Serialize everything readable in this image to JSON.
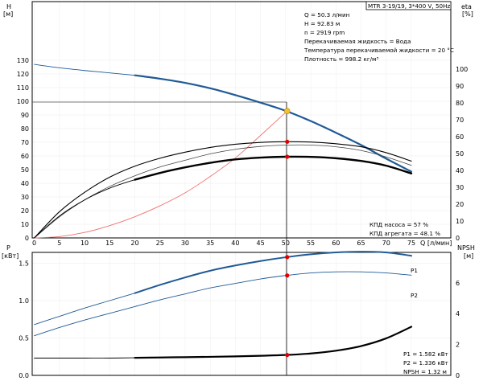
{
  "title": "MTR 3-19/19, 3*400 V, 50Hz",
  "operating_point": {
    "lines": [
      "Q = 50.3 л/мин",
      "H = 92.83 м",
      "n = 2919 rpm",
      "Перекачиваемая жидкость = Вода",
      "Температура перекачиваемой жидкости = 20 °C",
      "Плотность = 998.2 кг/м³"
    ]
  },
  "top_labels": {
    "left_axis_name": "H",
    "left_axis_unit": "[м]",
    "right_axis_name": "eta",
    "right_axis_unit": "[%]",
    "eff_pump": "КПД насоса = 57 %",
    "eff_unit": "КПД агрегата = 48.1 %"
  },
  "bottom_labels": {
    "left_axis_name": "P",
    "left_axis_unit": "[кВт]",
    "right_axis_name": "NPSH",
    "right_axis_unit": "[м]",
    "x_axis_label": "Q [л/мин]",
    "p1_series": "P1",
    "p2_series": "P2",
    "p1_value": "P1 = 1.582 кВт",
    "p2_value": "P2 = 1.336 кВт",
    "npsh_value": "NPSH = 1.32 м"
  },
  "colors": {
    "head": "#1f5a96",
    "eta": "#000000",
    "eta_thin": "#444444",
    "system": "#f07070",
    "power": "#1f5a96",
    "npsh": "#000000",
    "marker": "#e00000",
    "op_marker": "#f5c030"
  },
  "chart_data": [
    {
      "type": "line",
      "name": "pump-curves",
      "x_range": [
        0,
        80
      ],
      "ylim_left": [
        0,
        140
      ],
      "ylim_right": [
        0,
        100
      ],
      "x_ticks": [
        0,
        5,
        10,
        15,
        20,
        25,
        30,
        35,
        40,
        45,
        50,
        55,
        60,
        65,
        70,
        75
      ],
      "y_ticks_left": [
        0,
        10,
        20,
        30,
        40,
        50,
        60,
        70,
        80,
        90,
        100,
        110,
        120,
        130
      ],
      "y_ticks_right": [
        0,
        10,
        20,
        30,
        40,
        50,
        60,
        70,
        80,
        90,
        100
      ],
      "operating_point": {
        "q": 50.3,
        "h": 92.83,
        "eta_pump": 57,
        "eta_unit": 48.1
      },
      "series": [
        {
          "axis": "left",
          "style": "head-thin",
          "x": [
            0,
            5,
            10,
            15,
            20
          ],
          "y": [
            127,
            124.5,
            122.5,
            120.8,
            119
          ]
        },
        {
          "axis": "left",
          "style": "head",
          "x": [
            20,
            25,
            30,
            35,
            40,
            45,
            50,
            55,
            60,
            65,
            70,
            75
          ],
          "y": [
            119,
            116.5,
            113.5,
            109.5,
            104.5,
            99,
            93,
            85.5,
            77,
            68,
            58,
            48.5
          ]
        },
        {
          "axis": "left",
          "style": "system",
          "x": [
            0,
            5,
            10,
            15,
            20,
            25,
            30,
            35,
            40,
            45,
            50.3
          ],
          "y": [
            0,
            1,
            4,
            9,
            15.5,
            23.5,
            33,
            45,
            58.5,
            75,
            92.83
          ]
        },
        {
          "axis": "right",
          "style": "eta-thin",
          "x": [
            0,
            5,
            10,
            15,
            20,
            25,
            30,
            35,
            40,
            45,
            50,
            55,
            60,
            65,
            70,
            75
          ],
          "y": [
            0,
            12.5,
            22.5,
            30.5,
            36.8,
            42,
            46,
            49.8,
            52.5,
            54.2,
            55,
            55,
            54,
            51.8,
            48,
            43
          ]
        },
        {
          "axis": "right",
          "style": "eta-pump",
          "x": [
            0,
            5,
            10,
            15,
            20,
            25,
            30,
            35,
            40,
            45,
            50,
            55,
            60,
            65,
            70,
            75
          ],
          "y": [
            0,
            15.5,
            27,
            36,
            42.5,
            47.2,
            50.8,
            53.6,
            55.5,
            56.6,
            57,
            56.8,
            55.8,
            54,
            50.5,
            45.5
          ]
        },
        {
          "axis": "right",
          "style": "eta-unit-thin",
          "x": [
            0,
            5,
            10,
            15,
            20
          ],
          "y": [
            0,
            13,
            22.5,
            29.5,
            34.5
          ]
        },
        {
          "axis": "right",
          "style": "eta-unit",
          "x": [
            20,
            25,
            30,
            35,
            40,
            45,
            50,
            55,
            60,
            65,
            70,
            75
          ],
          "y": [
            34.5,
            38.5,
            41.8,
            44.5,
            46.5,
            47.6,
            48.1,
            48,
            47.2,
            45.6,
            42.8,
            38.2
          ]
        }
      ],
      "markers": [
        {
          "axis": "right",
          "x": 50.3,
          "y": 57
        },
        {
          "axis": "right",
          "x": 50.3,
          "y": 48.1
        }
      ]
    },
    {
      "type": "line",
      "name": "power-npsh",
      "x_range": [
        0,
        80
      ],
      "xlabel": "Q [л/мин]",
      "ylim_left": [
        0,
        1.8
      ],
      "ylim_right": [
        0,
        8
      ],
      "x_ticks": [
        0,
        5,
        10,
        15,
        20,
        25,
        30,
        35,
        40,
        45,
        50,
        55,
        60,
        65,
        70,
        75
      ],
      "y_ticks_left": [
        0.0,
        0.5,
        1.0,
        1.5
      ],
      "y_ticks_right": [
        0,
        2,
        4,
        6
      ],
      "series": [
        {
          "name": "P1",
          "axis": "left",
          "style": "power-thin",
          "x": [
            0,
            5,
            10,
            15,
            20
          ],
          "y": [
            0.68,
            0.79,
            0.9,
            1.0,
            1.1
          ]
        },
        {
          "name": "P1",
          "axis": "left",
          "style": "power",
          "x": [
            20,
            25,
            30,
            35,
            40,
            45,
            50,
            55,
            60,
            65,
            70,
            75
          ],
          "y": [
            1.1,
            1.21,
            1.31,
            1.4,
            1.47,
            1.53,
            1.58,
            1.62,
            1.645,
            1.655,
            1.645,
            1.6
          ]
        },
        {
          "name": "P2",
          "axis": "left",
          "style": "power-thin",
          "x": [
            0,
            5,
            10,
            15,
            20,
            25,
            30,
            35,
            40,
            45,
            50,
            55,
            60,
            65,
            70,
            75
          ],
          "y": [
            0.53,
            0.64,
            0.74,
            0.83,
            0.92,
            1.01,
            1.09,
            1.17,
            1.23,
            1.29,
            1.336,
            1.37,
            1.385,
            1.385,
            1.37,
            1.34
          ]
        },
        {
          "name": "NPSH",
          "axis": "right",
          "style": "npsh-thin",
          "x": [
            0,
            5,
            10,
            15,
            20
          ],
          "y": [
            1.12,
            1.12,
            1.12,
            1.12,
            1.14
          ]
        },
        {
          "name": "NPSH",
          "axis": "right",
          "style": "npsh",
          "x": [
            20,
            25,
            30,
            35,
            40,
            45,
            50,
            55,
            60,
            65,
            70,
            75
          ],
          "y": [
            1.14,
            1.16,
            1.18,
            1.2,
            1.23,
            1.27,
            1.32,
            1.42,
            1.6,
            1.9,
            2.4,
            3.15
          ]
        }
      ],
      "markers": [
        {
          "axis": "left",
          "x": 50.3,
          "y": 1.582
        },
        {
          "axis": "left",
          "x": 50.3,
          "y": 1.336
        },
        {
          "axis": "right",
          "x": 50.3,
          "y": 1.32
        }
      ]
    }
  ]
}
